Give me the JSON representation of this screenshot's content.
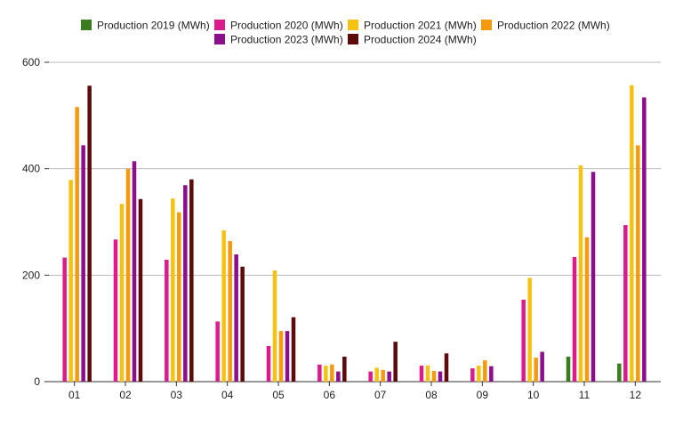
{
  "chart_data": {
    "type": "bar",
    "categories": [
      "01",
      "02",
      "03",
      "04",
      "05",
      "06",
      "07",
      "08",
      "09",
      "10",
      "11",
      "12"
    ],
    "ylim": [
      0,
      600
    ],
    "yticks": [
      0,
      200,
      400,
      600
    ],
    "grid": true,
    "legend_position": "top",
    "series": [
      {
        "name": "Production 2019 (MWh)",
        "color": "#3a7d1e",
        "values": [
          null,
          null,
          null,
          null,
          null,
          null,
          null,
          null,
          null,
          null,
          47,
          34
        ]
      },
      {
        "name": "Production 2020 (MWh)",
        "color": "#dd1a8c",
        "values": [
          233,
          267,
          229,
          113,
          67,
          32,
          19,
          30,
          25,
          154,
          234,
          294
        ]
      },
      {
        "name": "Production 2021 (MWh)",
        "color": "#f5c211",
        "values": [
          379,
          334,
          344,
          284,
          209,
          30,
          26,
          30,
          30,
          195,
          406,
          557
        ]
      },
      {
        "name": "Production 2022 (MWh)",
        "color": "#f59a0c",
        "values": [
          516,
          400,
          318,
          264,
          95,
          32,
          22,
          20,
          40,
          45,
          271,
          444
        ]
      },
      {
        "name": "Production 2023 (MWh)",
        "color": "#8c0e8c",
        "values": [
          444,
          414,
          369,
          239,
          95,
          19,
          19,
          19,
          29,
          56,
          394,
          534
        ]
      },
      {
        "name": "Production 2024 (MWh)",
        "color": "#5e0a0a",
        "values": [
          556,
          343,
          380,
          216,
          121,
          47,
          75,
          53,
          null,
          null,
          null,
          null
        ]
      }
    ]
  }
}
